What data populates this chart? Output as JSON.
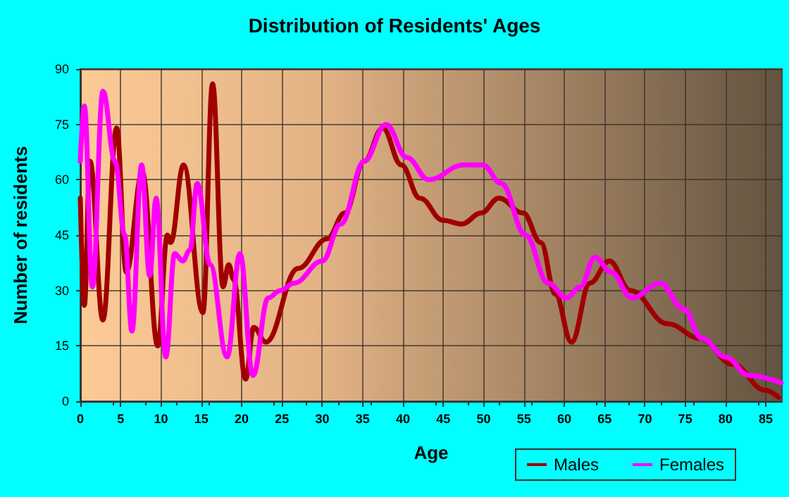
{
  "chart_data": {
    "type": "line",
    "title": "Distribution of Residents' Ages",
    "xlabel": "Age",
    "ylabel": "Number of residents",
    "xlim": [
      0,
      87
    ],
    "xticks": [
      0,
      5,
      10,
      15,
      20,
      25,
      30,
      35,
      40,
      45,
      50,
      55,
      60,
      65,
      70,
      75,
      80,
      85
    ],
    "ylim": [
      0,
      90
    ],
    "yticks": [
      0,
      15,
      30,
      45,
      60,
      75,
      90
    ],
    "grid": true,
    "legend": "bottom right",
    "marker": "none",
    "line_style": "solid",
    "series": [
      {
        "name": "Males",
        "color": "#a00000",
        "x": [
          0,
          0.5,
          1.2,
          2.8,
          4.5,
          5.7,
          7.7,
          9.6,
          10.8,
          11.2,
          12.8,
          15.2,
          16.4,
          17.7,
          18.4,
          19,
          20.5,
          21.5,
          23,
          27,
          30.6,
          32.8,
          35.2,
          37.5,
          39.8,
          42.1,
          45,
          47.3,
          49.7,
          51.9,
          54.9,
          57.1,
          58.9,
          60.9,
          63.2,
          65.6,
          68.2,
          72.8,
          76.9,
          80.9,
          84.9,
          86.6
        ],
        "values": [
          55,
          26,
          65,
          22,
          74,
          35,
          62,
          15,
          45,
          43,
          64,
          24,
          86,
          31,
          37,
          33,
          6,
          20,
          16,
          36,
          44,
          51,
          65,
          74,
          64,
          55,
          49,
          48,
          51,
          55,
          51,
          43,
          29,
          16,
          32,
          38,
          30,
          21,
          17,
          10,
          3,
          1
        ]
      },
      {
        "name": "Females",
        "color": "#ff00ff",
        "x": [
          0,
          0.5,
          1.5,
          2.8,
          4.3,
          5.5,
          6.4,
          7.6,
          8.6,
          9.4,
          10.6,
          11.7,
          12.7,
          13.6,
          14.5,
          16.1,
          18.2,
          19.8,
          21.4,
          23.3,
          24.8,
          26.5,
          30,
          32.3,
          35.2,
          37.9,
          40.5,
          43.2,
          47.5,
          49.9,
          52.2,
          55.2,
          58,
          60.3,
          62,
          63.8,
          65.8,
          68.4,
          71.9,
          74.8,
          77.1,
          80,
          82.9,
          86.9
        ],
        "values": [
          65,
          80,
          31,
          84,
          65,
          45,
          19,
          64,
          34,
          55,
          12,
          40,
          38,
          41,
          59,
          37,
          12,
          40,
          7,
          28,
          30,
          32,
          38,
          48,
          65,
          75,
          66,
          60,
          64,
          64,
          59,
          45,
          32,
          28,
          31,
          39,
          35,
          28,
          32,
          25,
          17,
          12,
          7,
          5
        ]
      }
    ]
  }
}
